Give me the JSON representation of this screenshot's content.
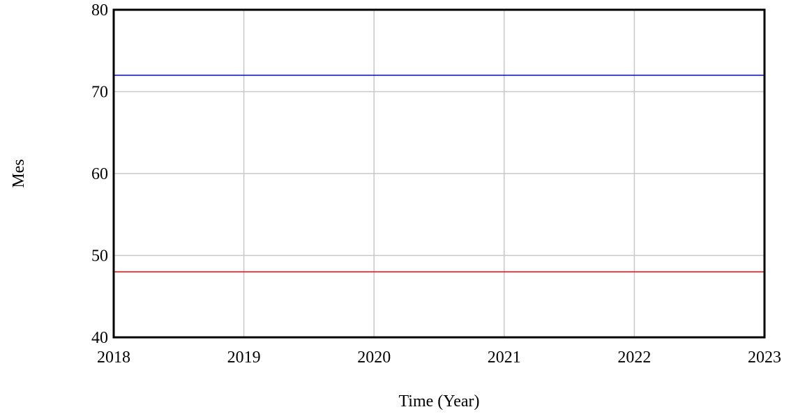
{
  "chart_data": {
    "type": "line",
    "title": "",
    "xlabel": "Time (Year)",
    "ylabel": "Mes",
    "xlim": [
      2018,
      2023
    ],
    "ylim": [
      40,
      80
    ],
    "x_ticks": [
      2018,
      2019,
      2020,
      2021,
      2022,
      2023
    ],
    "y_ticks": [
      40,
      50,
      60,
      70,
      80
    ],
    "grid": true,
    "legend": "none",
    "series": [
      {
        "color": "#0000ff",
        "x": [
          2018,
          2023
        ],
        "y": [
          72,
          72
        ]
      },
      {
        "color": "#ff0000",
        "x": [
          2018,
          2023
        ],
        "y": [
          48,
          48
        ]
      }
    ]
  }
}
